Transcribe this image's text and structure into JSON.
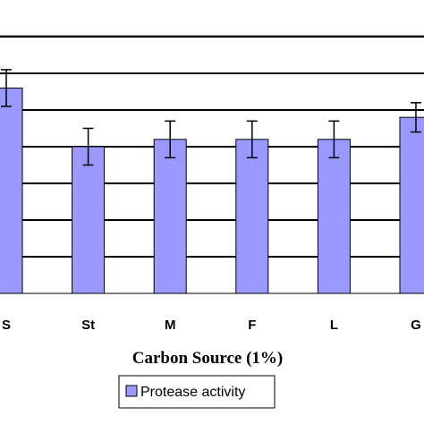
{
  "chart_data": {
    "type": "bar",
    "title": "",
    "xlabel": "Carbon Source (1%)",
    "ylabel": "",
    "categories": [
      "S",
      "St",
      "M",
      "F",
      "L",
      "G"
    ],
    "series": [
      {
        "name": "Protease activity",
        "values": [
          5.6,
          4.0,
          4.2,
          4.2,
          4.2,
          4.8
        ],
        "errors": [
          0.5,
          0.5,
          0.5,
          0.5,
          0.5,
          0.4
        ]
      }
    ],
    "ylim": [
      0,
      8
    ],
    "grid": true,
    "legend_position": "bottom-center",
    "colors": {
      "bar_fill": "#9999ff",
      "bar_stroke": "#000000",
      "gridline": "#000000",
      "top_rule": "#999999"
    }
  }
}
